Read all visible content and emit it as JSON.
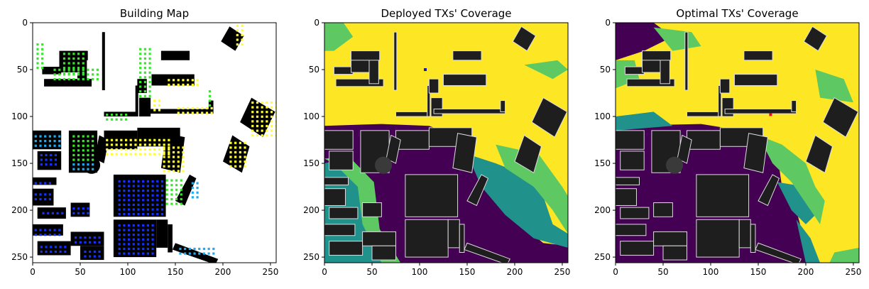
{
  "chart_data": [
    {
      "type": "heatmap",
      "title": "Building Map",
      "xlabel": "",
      "ylabel": "",
      "xlim": [
        0,
        256
      ],
      "ylim": [
        256,
        0
      ],
      "xticks": [
        0,
        50,
        100,
        150,
        200,
        250
      ],
      "yticks": [
        0,
        50,
        100,
        150,
        200,
        250
      ],
      "legend": "none",
      "background": "#ffffff",
      "building_color": "#000000",
      "marker_colors": {
        "green": "#39e52d",
        "yellow": "#ffff33",
        "cyan": "#22aaf0",
        "blue": "#1432ff"
      }
    },
    {
      "type": "heatmap",
      "title": "Deployed TXs' Coverage",
      "xlabel": "",
      "ylabel": "",
      "xlim": [
        0,
        256
      ],
      "ylim": [
        256,
        0
      ],
      "xticks": [
        0,
        50,
        100,
        150,
        200,
        250
      ],
      "yticks": [
        0,
        50,
        100,
        150,
        200,
        250
      ],
      "legend": "none",
      "colormap": [
        "#440154",
        "#21918c",
        "#5ec962",
        "#fde725"
      ],
      "building_color": "#1e1e1e",
      "tx_marker_color": "#1a1aa0"
    },
    {
      "type": "heatmap",
      "title": "Optimal TXs' Coverage",
      "xlabel": "",
      "ylabel": "",
      "xlim": [
        0,
        256
      ],
      "ylim": [
        256,
        0
      ],
      "xticks": [
        0,
        50,
        100,
        150,
        200,
        250
      ],
      "yticks": [
        0,
        50,
        100,
        150,
        200,
        250
      ],
      "legend": "none",
      "colormap": [
        "#440154",
        "#21918c",
        "#5ec962",
        "#fde725"
      ],
      "building_color": "#1e1e1e",
      "tx_marker_color": "#e0141e"
    }
  ]
}
